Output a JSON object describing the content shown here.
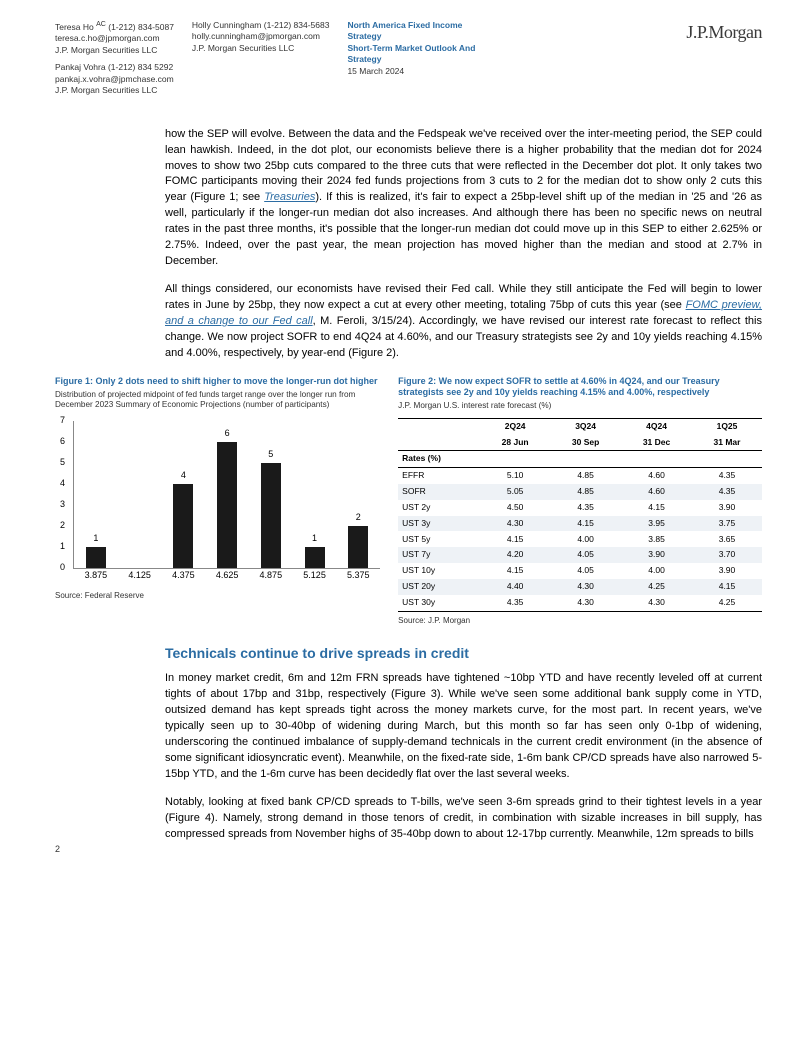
{
  "header": {
    "contacts": [
      [
        {
          "name": "Teresa Ho",
          "sup": "AC",
          "phone": "(1-212) 834-5087",
          "email": "teresa.c.ho@jpmorgan.com",
          "org": "J.P. Morgan Securities LLC"
        },
        {
          "name": "Pankaj Vohra",
          "phone": "(1-212) 834 5292",
          "email": "pankaj.x.vohra@jpmchase.com",
          "org": "J.P. Morgan Securities LLC"
        }
      ],
      [
        {
          "name": "Holly Cunningham",
          "phone": "(1-212) 834-5683",
          "email": "holly.cunningham@jpmorgan.com",
          "org": "J.P. Morgan Securities LLC"
        }
      ]
    ],
    "meta": {
      "line1": "North America Fixed Income Strategy",
      "line2": "Short-Term Market Outlook And Strategy",
      "date": "15 March 2024"
    },
    "logo": "J.P.Morgan"
  },
  "body": {
    "p1a": "how the SEP will evolve. Between the data and the Fedspeak we've received over the inter-meeting period, the SEP could lean hawkish. Indeed, in the dot plot, our economists believe there is a higher probability that the median dot for 2024 moves to show two 25bp cuts compared to the three cuts that were reflected in the December dot plot. It only takes two FOMC participants moving their 2024 fed funds projections from 3 cuts to 2 for the median dot to show only 2 cuts this year (Figure 1; see ",
    "p1link": "Treasuries",
    "p1b": "). If this is realized, it's fair to expect a 25bp-level shift up of the median in '25 and '26 as well, particularly if the longer-run median dot also increases. And although there has been no specific news on neutral rates in the past three months, it's possible that the longer-run median dot could move up in this SEP to either 2.625% or 2.75%. Indeed, over the past year, the mean projection has moved higher than the median and stood at 2.7% in December.",
    "p2a": "All things considered, our economists have revised their Fed call. While they still anticipate the Fed will begin to lower rates in June by 25bp, they now expect a cut at every other meeting, totaling 75bp of cuts this year (see ",
    "p2link": "FOMC preview, and a change to our Fed call",
    "p2b": ", M. Feroli, 3/15/24). Accordingly, we have revised our interest rate forecast to reflect this change. We now project SOFR to end 4Q24 at 4.60%, and our Treasury strategists see 2y and 10y yields reaching 4.15% and 4.00%, respectively, by year-end (Figure 2).",
    "section_title": "Technicals continue to drive spreads in credit",
    "p3": "In money market credit, 6m and 12m FRN spreads have tightened ~10bp YTD and have recently leveled off at current tights of about 17bp and 31bp, respectively (Figure 3). While we've seen some additional bank supply come in YTD, outsized demand has kept spreads tight across the money markets curve, for the most part.  In recent years, we've typically seen up to 30-40bp of widening during March, but this month so far has seen only 0-1bp of widening, underscoring the continued imbalance of supply-demand technicals in the current credit environment (in the absence of some significant idiosyncratic event).  Meanwhile, on the fixed-rate side, 1-6m bank CP/CD spreads have also narrowed 5-15bp YTD, and the 1-6m curve has been decidedly flat over the last several weeks.",
    "p4": "Notably, looking at fixed bank CP/CD spreads to T-bills, we've seen 3-6m spreads grind to their tightest levels in a year (Figure 4).  Namely, strong demand in those tenors of credit, in combination with sizable increases in bill supply, has compressed spreads from November highs of 35-40bp down to about 12-17bp currently.  Meanwhile, 12m spreads to bills"
  },
  "fig1": {
    "title": "Figure 1: Only 2 dots need to shift higher to move the longer-run dot higher",
    "sub": "Distribution of projected midpoint of fed funds target range over the longer run from December 2023 Summary of Economic Projections (number of participants)",
    "source": "Source: Federal Reserve",
    "type": "bar",
    "categories": [
      "3.875",
      "4.125",
      "4.375",
      "4.625",
      "4.875",
      "5.125",
      "5.375"
    ],
    "values": [
      1,
      0,
      4,
      6,
      5,
      1,
      2
    ],
    "ylim": [
      0,
      7
    ],
    "ytick_step": 1,
    "bar_color": "#1a1a1a",
    "axis_color": "#888888",
    "label_fontsize": 9,
    "background_color": "#ffffff"
  },
  "fig2": {
    "title": "Figure 2: We now expect SOFR to settle at 4.60% in 4Q24, and our Treasury strategists see 2y and 10y yields reaching 4.15% and 4.00%, respectively",
    "sub": "J.P. Morgan U.S. interest rate forecast (%)",
    "source": "Source: J.P. Morgan",
    "headers1": [
      "",
      "2Q24",
      "3Q24",
      "4Q24",
      "1Q25"
    ],
    "headers2": [
      "",
      "28 Jun",
      "30 Sep",
      "31 Dec",
      "31 Mar"
    ],
    "section": "Rates (%)",
    "rows": [
      {
        "label": "EFFR",
        "v": [
          "5.10",
          "4.85",
          "4.60",
          "4.35"
        ],
        "shade": false
      },
      {
        "label": "SOFR",
        "v": [
          "5.05",
          "4.85",
          "4.60",
          "4.35"
        ],
        "shade": true
      },
      {
        "label": "UST 2y",
        "v": [
          "4.50",
          "4.35",
          "4.15",
          "3.90"
        ],
        "shade": false
      },
      {
        "label": "UST 3y",
        "v": [
          "4.30",
          "4.15",
          "3.95",
          "3.75"
        ],
        "shade": true
      },
      {
        "label": "UST 5y",
        "v": [
          "4.15",
          "4.00",
          "3.85",
          "3.65"
        ],
        "shade": false
      },
      {
        "label": "UST 7y",
        "v": [
          "4.20",
          "4.05",
          "3.90",
          "3.70"
        ],
        "shade": true
      },
      {
        "label": "UST 10y",
        "v": [
          "4.15",
          "4.05",
          "4.00",
          "3.90"
        ],
        "shade": false
      },
      {
        "label": "UST 20y",
        "v": [
          "4.40",
          "4.30",
          "4.25",
          "4.15"
        ],
        "shade": true
      },
      {
        "label": "UST 30y",
        "v": [
          "4.35",
          "4.30",
          "4.30",
          "4.25"
        ],
        "shade": false
      }
    ],
    "shade_color": "#eef2f6"
  },
  "page_number": "2"
}
